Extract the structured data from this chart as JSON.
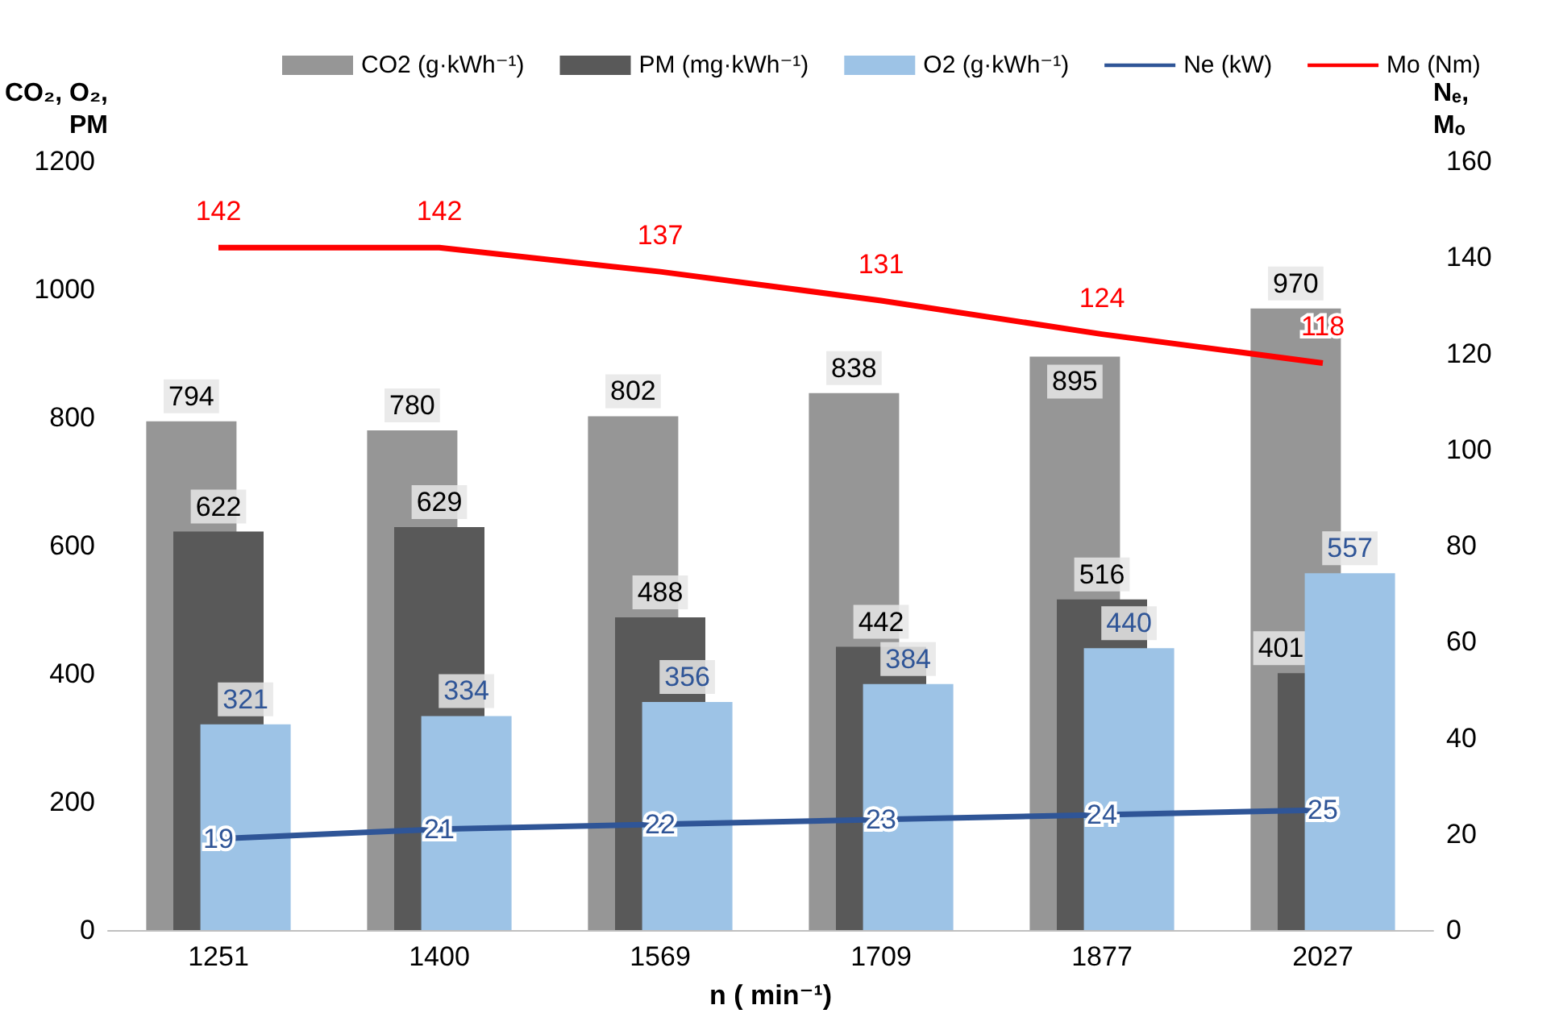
{
  "chart_data": {
    "type": "bar",
    "xlabel": "n ( min⁻¹)",
    "ylabel": "CO₂, O₂, PM",
    "y2label": "Nₑ, Mₒ",
    "categories": [
      "1251",
      "1400",
      "1569",
      "1709",
      "1877",
      "2027"
    ],
    "series": [
      {
        "name": "CO2 (g·kWh⁻¹)",
        "color": "#969696",
        "values": [
          794,
          780,
          802,
          838,
          895,
          970
        ]
      },
      {
        "name": "PM (mg·kWh⁻¹)",
        "color": "#595959",
        "values": [
          622,
          629,
          488,
          442,
          516,
          401
        ]
      },
      {
        "name": "O2 (g·kWh⁻¹)",
        "color": "#9dc3e6",
        "values": [
          321,
          334,
          356,
          384,
          440,
          557
        ]
      },
      {
        "name": "Ne (kW)",
        "type": "line",
        "axis": "y2",
        "color": "#2f5597",
        "values": [
          19,
          21,
          22,
          23,
          24,
          25
        ]
      },
      {
        "name": "Mo (Nm)",
        "type": "line",
        "axis": "y2",
        "color": "#ff0000",
        "values": [
          142,
          142,
          137,
          131,
          124,
          118
        ]
      }
    ],
    "ylim": [
      0,
      1200
    ],
    "yticks": [
      0,
      200,
      400,
      600,
      800,
      1000,
      1200
    ],
    "y2lim": [
      0,
      160
    ],
    "y2ticks": [
      0,
      20,
      40,
      60,
      80,
      100,
      120,
      140,
      160
    ],
    "data_labels": true,
    "legend": "top",
    "marker": "none",
    "line_style": "solid"
  }
}
